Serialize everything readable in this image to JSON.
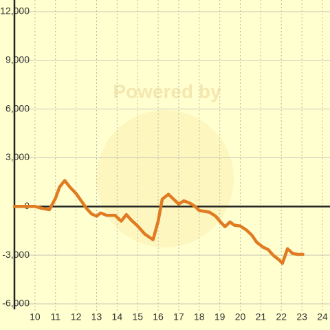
{
  "chart_data": {
    "type": "line",
    "watermark": "Powered by",
    "x": [
      9,
      10,
      10.3,
      10.7,
      11.0,
      11.2,
      11.45,
      11.7,
      12.0,
      12.25,
      12.5,
      12.75,
      13.0,
      13.2,
      13.5,
      13.9,
      14.2,
      14.45,
      14.7,
      15.0,
      15.35,
      15.75,
      16.0,
      16.2,
      16.5,
      16.75,
      17.0,
      17.25,
      17.55,
      17.8,
      18.0,
      18.25,
      18.5,
      18.8,
      19.0,
      19.25,
      19.5,
      19.7,
      20.0,
      20.3,
      20.55,
      20.8,
      21.1,
      21.35,
      21.6,
      21.9,
      22.05,
      22.3,
      22.55,
      22.8,
      23.05
    ],
    "values": [
      0,
      0,
      -100,
      -200,
      500,
      1200,
      1600,
      1200,
      800,
      350,
      -100,
      -450,
      -600,
      -400,
      -550,
      -550,
      -900,
      -500,
      -850,
      -1200,
      -1700,
      -2050,
      -900,
      450,
      750,
      450,
      150,
      350,
      200,
      0,
      -250,
      -300,
      -350,
      -600,
      -900,
      -1250,
      -950,
      -1150,
      -1200,
      -1450,
      -1750,
      -2200,
      -2500,
      -2650,
      -3000,
      -3300,
      -3500,
      -2600,
      -2900,
      -2950,
      -2950
    ],
    "color": "#e07b22",
    "xlim": [
      9,
      24
    ],
    "xticks": [
      10,
      11,
      12,
      13,
      14,
      15,
      16,
      17,
      18,
      19,
      20,
      21,
      22,
      23,
      24
    ],
    "ylim": [
      -6000,
      12000
    ],
    "yticks": [
      {
        "value": -6000,
        "label": "-6,000"
      },
      {
        "value": -3000,
        "label": "-3,000"
      },
      0,
      {
        "value": 3000,
        "label": "3,000"
      },
      {
        "value": 6000,
        "label": "6,000"
      },
      {
        "value": 9000,
        "label": "9,000"
      },
      {
        "value": 12000,
        "label": "12,000"
      }
    ],
    "grid": true
  }
}
